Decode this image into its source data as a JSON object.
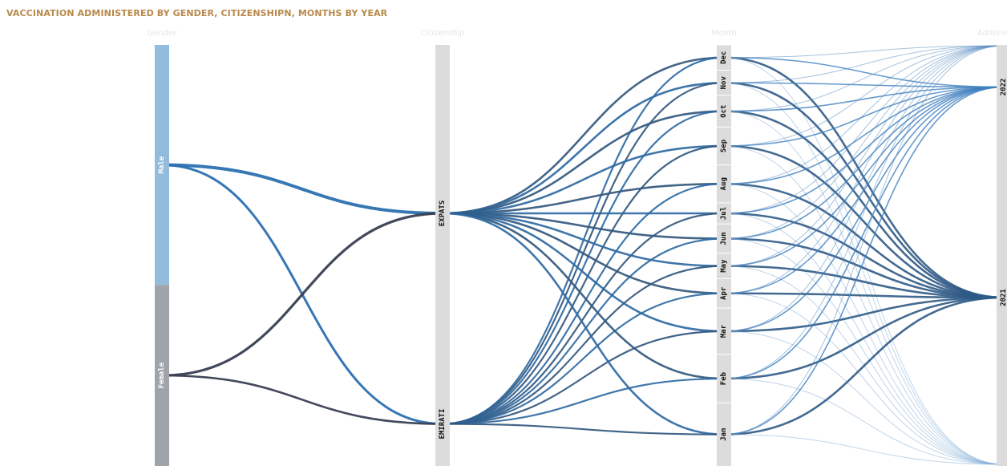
{
  "chart_data": {
    "type": "parallel_sets",
    "title": "VACCINATION ADMINISTERED BY GENDER, CITIZENSHIPN, MONTHS BY YEAR",
    "dimensions": [
      {
        "name": "Gender",
        "categories": [
          "Male",
          "Female"
        ]
      },
      {
        "name": "Citizenship",
        "categories": [
          "EXPATS",
          "EMIRATI"
        ]
      },
      {
        "name": "Month",
        "categories": [
          "Dec",
          "Nov",
          "Oct",
          "Sep",
          "Aug",
          "Jul",
          "Jun",
          "May",
          "Apr",
          "Mar",
          "Feb",
          "Jan"
        ]
      },
      {
        "name": "Administered",
        "categories": [
          "2022",
          "2021"
        ]
      }
    ],
    "category_shares": {
      "Gender": {
        "Male": 0.57,
        "Female": 0.43
      },
      "Citizenship": {
        "EXPATS": 0.8,
        "EMIRATI": 0.2
      },
      "Month": {
        "Dec": 0.06,
        "Nov": 0.06,
        "Oct": 0.075,
        "Sep": 0.09,
        "Aug": 0.09,
        "Jul": 0.05,
        "Jun": 0.07,
        "May": 0.06,
        "Apr": 0.07,
        "Mar": 0.11,
        "Feb": 0.115,
        "Jan": 0.15
      },
      "Administered": {
        "2022": 0.2,
        "2021": 0.8
      }
    },
    "colors": {
      "male": "#2b70b0",
      "female": "#383f52",
      "male_bar": "#93bcdc",
      "female_bar": "#9ea4aa",
      "axis_bar": "#dcdcdc",
      "title": "#b8894a"
    }
  }
}
